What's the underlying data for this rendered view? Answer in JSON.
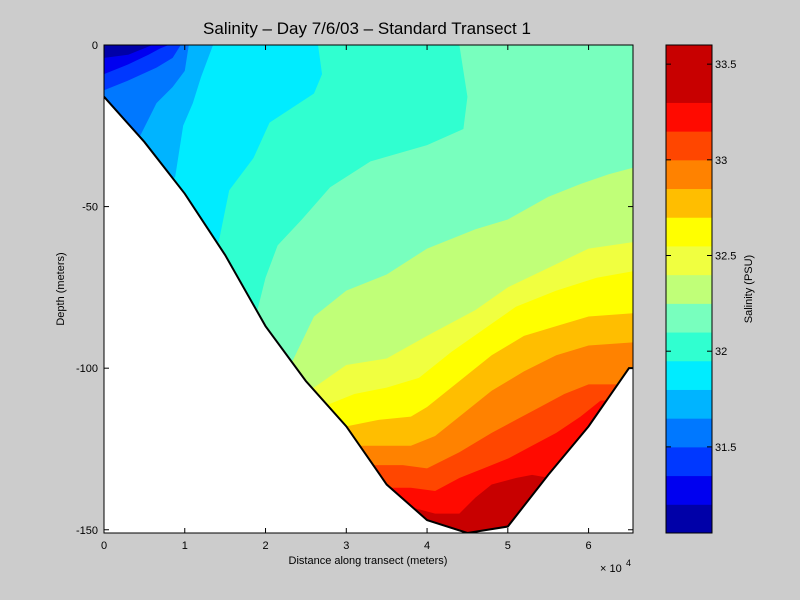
{
  "chart_data": {
    "type": "filled-contour",
    "title": "Salinity – Day 7/6/03 – Standard Transect 1",
    "xlabel": "Distance along transect (meters)",
    "ylabel": "Depth (meters)",
    "xlim": [
      0,
      65500
    ],
    "ylim": [
      -151,
      0
    ],
    "x_ticks": [
      0,
      10000,
      20000,
      30000,
      40000,
      50000,
      60000
    ],
    "x_tick_labels": [
      "0",
      "1",
      "2",
      "3",
      "4",
      "5",
      "6"
    ],
    "x_exponent_base": "× 10",
    "x_exponent_power": "4",
    "y_ticks": [
      0,
      -50,
      -100,
      -150
    ],
    "y_tick_labels": [
      "0",
      "-50",
      "-100",
      "-150"
    ],
    "colorbar": {
      "label": "Salinity (PSU)",
      "range": [
        31.05,
        33.6
      ],
      "ticks": [
        31.5,
        32,
        32.5,
        33,
        33.5
      ],
      "tick_labels": [
        "31.5",
        "32",
        "32.5",
        "33",
        "33.5"
      ],
      "levels": [
        {
          "from": 31.05,
          "to": 31.2,
          "color": "#0000a8"
        },
        {
          "from": 31.2,
          "to": 31.35,
          "color": "#0000f0"
        },
        {
          "from": 31.35,
          "to": 31.5,
          "color": "#0038ff"
        },
        {
          "from": 31.5,
          "to": 31.65,
          "color": "#0078ff"
        },
        {
          "from": 31.65,
          "to": 31.8,
          "color": "#00b4ff"
        },
        {
          "from": 31.8,
          "to": 31.95,
          "color": "#00ecff"
        },
        {
          "from": 31.95,
          "to": 32.1,
          "color": "#30ffd0"
        },
        {
          "from": 32.1,
          "to": 32.25,
          "color": "#78ffbe"
        },
        {
          "from": 32.25,
          "to": 32.4,
          "color": "#c0ff78"
        },
        {
          "from": 32.4,
          "to": 32.55,
          "color": "#f0ff40"
        },
        {
          "from": 32.55,
          "to": 32.7,
          "color": "#ffff00"
        },
        {
          "from": 32.7,
          "to": 32.85,
          "color": "#ffbe00"
        },
        {
          "from": 32.85,
          "to": 33.0,
          "color": "#ff8200"
        },
        {
          "from": 33.0,
          "to": 33.15,
          "color": "#ff4600"
        },
        {
          "from": 33.15,
          "to": 33.3,
          "color": "#ff0a00"
        },
        {
          "from": 33.3,
          "to": 33.6,
          "color": "#c80000"
        }
      ]
    },
    "bottom_profile": [
      [
        0,
        -16
      ],
      [
        5000,
        -30
      ],
      [
        10000,
        -46
      ],
      [
        15000,
        -65
      ],
      [
        20000,
        -87
      ],
      [
        25000,
        -104
      ],
      [
        30000,
        -118
      ],
      [
        35000,
        -136
      ],
      [
        40000,
        -147
      ],
      [
        45000,
        -151
      ],
      [
        50000,
        -149
      ],
      [
        55000,
        -133
      ],
      [
        60000,
        -118
      ],
      [
        65000,
        -100
      ],
      [
        65500,
        -100
      ]
    ],
    "isohalines": [
      {
        "value": 31.2,
        "points": [
          [
            0,
            -4
          ],
          [
            3000,
            -3
          ],
          [
            5000,
            -1
          ],
          [
            6000,
            0
          ]
        ]
      },
      {
        "value": 31.35,
        "points": [
          [
            0,
            -9
          ],
          [
            3000,
            -6
          ],
          [
            5500,
            -3
          ],
          [
            7000,
            -1
          ],
          [
            8000,
            0
          ]
        ]
      },
      {
        "value": 31.5,
        "points": [
          [
            0,
            -14
          ],
          [
            3000,
            -11
          ],
          [
            6500,
            -7
          ],
          [
            8500,
            -4
          ],
          [
            9500,
            0
          ]
        ]
      },
      {
        "value": 31.65,
        "points": [
          [
            4500,
            -28
          ],
          [
            6500,
            -18
          ],
          [
            8500,
            -13
          ],
          [
            10000,
            -8
          ],
          [
            10500,
            0
          ]
        ]
      },
      {
        "value": 31.8,
        "points": [
          [
            8800,
            -41
          ],
          [
            9800,
            -25
          ],
          [
            11000,
            -18
          ],
          [
            12000,
            -10
          ],
          [
            13500,
            0
          ]
        ]
      },
      {
        "value": 31.95,
        "points": [
          [
            14200,
            -61
          ],
          [
            15500,
            -45
          ],
          [
            18500,
            -35
          ],
          [
            20500,
            -24
          ],
          [
            26000,
            -15
          ],
          [
            27000,
            -9
          ],
          [
            26500,
            0
          ]
        ]
      },
      {
        "value": 32.1,
        "points": [
          [
            19000,
            -82
          ],
          [
            20000,
            -72
          ],
          [
            21500,
            -62
          ],
          [
            24500,
            -54
          ],
          [
            28000,
            -44
          ],
          [
            33000,
            -36
          ],
          [
            40000,
            -31
          ],
          [
            44500,
            -26
          ],
          [
            45000,
            -16
          ],
          [
            44000,
            0
          ]
        ]
      },
      {
        "value": 32.25,
        "points": [
          [
            23300,
            -98
          ],
          [
            26000,
            -84
          ],
          [
            30000,
            -76
          ],
          [
            35000,
            -71
          ],
          [
            40000,
            -63
          ],
          [
            46000,
            -57
          ],
          [
            50000,
            -54
          ],
          [
            55000,
            -47
          ],
          [
            59000,
            -43
          ],
          [
            62500,
            -40
          ],
          [
            65500,
            -38
          ]
        ]
      },
      {
        "value": 32.4,
        "points": [
          [
            26000,
            -106
          ],
          [
            30000,
            -99
          ],
          [
            35000,
            -97
          ],
          [
            40000,
            -90
          ],
          [
            46000,
            -82
          ],
          [
            50000,
            -75
          ],
          [
            55000,
            -69
          ],
          [
            60000,
            -63
          ],
          [
            65500,
            -61
          ]
        ]
      },
      {
        "value": 32.55,
        "points": [
          [
            28000,
            -111
          ],
          [
            31000,
            -108
          ],
          [
            35000,
            -106
          ],
          [
            39000,
            -103
          ],
          [
            43000,
            -95
          ],
          [
            47000,
            -88
          ],
          [
            51000,
            -81
          ],
          [
            56000,
            -76
          ],
          [
            61000,
            -72
          ],
          [
            65500,
            -70
          ]
        ]
      },
      {
        "value": 32.7,
        "points": [
          [
            30000,
            -118
          ],
          [
            34000,
            -116
          ],
          [
            38000,
            -115
          ],
          [
            40000,
            -112
          ],
          [
            44000,
            -104
          ],
          [
            48000,
            -96
          ],
          [
            52000,
            -90
          ],
          [
            56000,
            -87
          ],
          [
            60000,
            -84
          ],
          [
            65500,
            -83
          ]
        ]
      },
      {
        "value": 32.85,
        "points": [
          [
            31500,
            -124
          ],
          [
            35000,
            -124
          ],
          [
            38000,
            -124
          ],
          [
            41000,
            -121
          ],
          [
            44000,
            -115
          ],
          [
            48000,
            -107
          ],
          [
            52000,
            -101
          ],
          [
            56000,
            -96
          ],
          [
            60000,
            -93
          ],
          [
            65500,
            -92
          ]
        ]
      },
      {
        "value": 33.0,
        "points": [
          [
            33200,
            -130
          ],
          [
            37000,
            -130
          ],
          [
            40000,
            -131
          ],
          [
            44000,
            -126
          ],
          [
            48000,
            -120
          ],
          [
            51000,
            -116
          ],
          [
            54000,
            -112
          ],
          [
            57000,
            -108
          ],
          [
            60000,
            -105
          ],
          [
            63500,
            -105
          ]
        ]
      },
      {
        "value": 33.15,
        "points": [
          [
            35500,
            -137
          ],
          [
            38000,
            -137
          ],
          [
            41000,
            -138
          ],
          [
            44000,
            -134
          ],
          [
            47000,
            -131
          ],
          [
            50000,
            -128
          ],
          [
            53000,
            -124
          ],
          [
            56000,
            -120
          ],
          [
            59000,
            -115
          ],
          [
            61500,
            -110
          ]
        ]
      },
      {
        "value": 33.3,
        "points": [
          [
            38000,
            -143
          ],
          [
            41000,
            -145
          ],
          [
            44000,
            -145
          ],
          [
            46000,
            -140
          ],
          [
            48000,
            -136
          ],
          [
            51000,
            -134
          ],
          [
            53000,
            -133
          ],
          [
            55200,
            -134
          ]
        ]
      }
    ]
  }
}
